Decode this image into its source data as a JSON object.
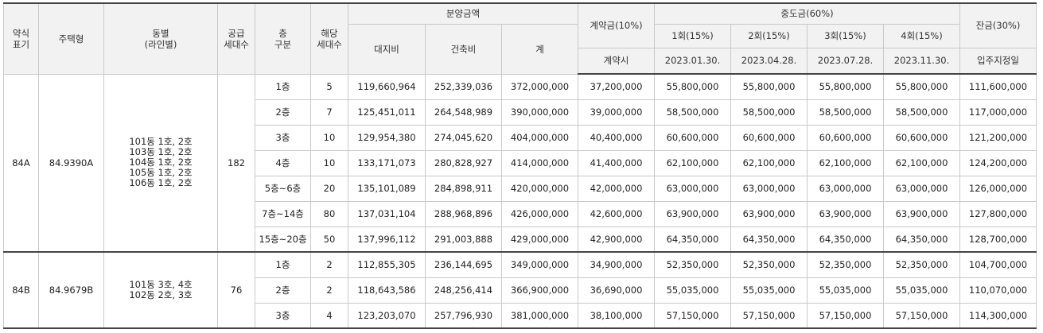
{
  "headers": {
    "type_label": "약식\n표기",
    "housing_type": "주택형",
    "building_line": "동별\n(라인별)",
    "supply_units": "공급\n세대수",
    "floor_section": "층\n구분",
    "units": "해당\n세대수",
    "sale_price": "분양금액",
    "land": "대지비",
    "building": "건축비",
    "total": "계",
    "contract": "계약금(10%)",
    "contract_when": "계약시",
    "interim": "중도금(60%)",
    "interim_1": "1회(15%)",
    "interim_2": "2회(15%)",
    "interim_3": "3회(15%)",
    "interim_4": "4회(15%)",
    "interim_1_date": "2023.01.30.",
    "interim_2_date": "2023.04.28.",
    "interim_3_date": "2023.07.28.",
    "interim_4_date": "2023.11.30.",
    "balance": "잔금(30%)",
    "balance_when": "입주지정일"
  },
  "groups": [
    {
      "type": "84A",
      "housing_type": "84.9390A",
      "dong_lines": [
        "101동 1호, 2호",
        "103동 1호, 2호",
        "104동 1호, 2호",
        "105동 1호, 2호",
        "106동 1호, 2호"
      ],
      "supply_units": "182",
      "rows": [
        {
          "floor": "1층",
          "units": "5",
          "land": "119,660,964",
          "building": "252,339,036",
          "total": "372,000,000",
          "contract": "37,200,000",
          "i1": "55,800,000",
          "i2": "55,800,000",
          "i3": "55,800,000",
          "i4": "55,800,000",
          "balance": "111,600,000"
        },
        {
          "floor": "2층",
          "units": "7",
          "land": "125,451,011",
          "building": "264,548,989",
          "total": "390,000,000",
          "contract": "39,000,000",
          "i1": "58,500,000",
          "i2": "58,500,000",
          "i3": "58,500,000",
          "i4": "58,500,000",
          "balance": "117,000,000"
        },
        {
          "floor": "3층",
          "units": "10",
          "land": "129,954,380",
          "building": "274,045,620",
          "total": "404,000,000",
          "contract": "40,400,000",
          "i1": "60,600,000",
          "i2": "60,600,000",
          "i3": "60,600,000",
          "i4": "60,600,000",
          "balance": "121,200,000"
        },
        {
          "floor": "4층",
          "units": "10",
          "land": "133,171,073",
          "building": "280,828,927",
          "total": "414,000,000",
          "contract": "41,400,000",
          "i1": "62,100,000",
          "i2": "62,100,000",
          "i3": "62,100,000",
          "i4": "62,100,000",
          "balance": "124,200,000"
        },
        {
          "floor": "5층~6층",
          "units": "20",
          "land": "135,101,089",
          "building": "284,898,911",
          "total": "420,000,000",
          "contract": "42,000,000",
          "i1": "63,000,000",
          "i2": "63,000,000",
          "i3": "63,000,000",
          "i4": "63,000,000",
          "balance": "126,000,000"
        },
        {
          "floor": "7층~14층",
          "units": "80",
          "land": "137,031,104",
          "building": "288,968,896",
          "total": "426,000,000",
          "contract": "42,600,000",
          "i1": "63,900,000",
          "i2": "63,900,000",
          "i3": "63,900,000",
          "i4": "63,900,000",
          "balance": "127,800,000"
        },
        {
          "floor": "15층~20층",
          "units": "50",
          "land": "137,996,112",
          "building": "291,003,888",
          "total": "429,000,000",
          "contract": "42,900,000",
          "i1": "64,350,000",
          "i2": "64,350,000",
          "i3": "64,350,000",
          "i4": "64,350,000",
          "balance": "128,700,000"
        }
      ]
    },
    {
      "type": "84B",
      "housing_type": "84.9679B",
      "dong_lines": [
        "101동 3호, 4호",
        "102동 2호, 3호"
      ],
      "supply_units": "76",
      "rows": [
        {
          "floor": "1층",
          "units": "2",
          "land": "112,855,305",
          "building": "236,144,695",
          "total": "349,000,000",
          "contract": "34,900,000",
          "i1": "52,350,000",
          "i2": "52,350,000",
          "i3": "52,350,000",
          "i4": "52,350,000",
          "balance": "104,700,000"
        },
        {
          "floor": "2층",
          "units": "2",
          "land": "118,643,586",
          "building": "248,256,414",
          "total": "366,900,000",
          "contract": "36,690,000",
          "i1": "55,035,000",
          "i2": "55,035,000",
          "i3": "55,035,000",
          "i4": "55,035,000",
          "balance": "110,070,000"
        },
        {
          "floor": "3층",
          "units": "4",
          "land": "123,203,070",
          "building": "257,796,930",
          "total": "381,000,000",
          "contract": "38,100,000",
          "i1": "57,150,000",
          "i2": "57,150,000",
          "i3": "57,150,000",
          "i4": "57,150,000",
          "balance": "114,300,000"
        }
      ]
    }
  ]
}
